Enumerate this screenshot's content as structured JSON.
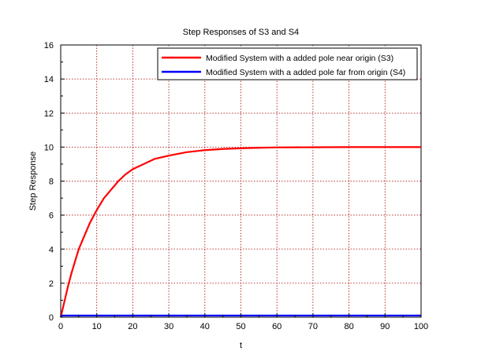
{
  "chart_data": {
    "type": "line",
    "title": "Step Responses of S3 and S4",
    "xlabel": "t",
    "ylabel": "Step Response",
    "xlim": [
      0,
      100
    ],
    "ylim": [
      0,
      16
    ],
    "xticks": [
      0,
      10,
      20,
      30,
      40,
      50,
      60,
      70,
      80,
      90,
      100
    ],
    "yticks": [
      0,
      2,
      4,
      6,
      8,
      10,
      12,
      14,
      16
    ],
    "grid": true,
    "legend_position": "top-right",
    "series": [
      {
        "name": "Modified System with a added pole near origin (S3)",
        "color": "#ff0000",
        "x": [
          0,
          1,
          2,
          3,
          4,
          5,
          6,
          7,
          8,
          10,
          12,
          14,
          16,
          18,
          20,
          23,
          26,
          30,
          35,
          40,
          45,
          50,
          55,
          60,
          70,
          80,
          90,
          100
        ],
        "y": [
          0,
          0.9,
          1.8,
          2.6,
          3.3,
          4.0,
          4.5,
          5.0,
          5.5,
          6.3,
          7.0,
          7.5,
          8.0,
          8.4,
          8.7,
          9.0,
          9.3,
          9.5,
          9.7,
          9.82,
          9.89,
          9.93,
          9.96,
          9.98,
          9.99,
          10.0,
          10.0,
          10.0
        ]
      },
      {
        "name": "Modified System with a added pole far from origin (S4)",
        "color": "#0000ff",
        "x": [
          0,
          0.3,
          0.6,
          1,
          2,
          100
        ],
        "y": [
          0,
          0.08,
          0.1,
          0.1,
          0.1,
          0.1
        ]
      }
    ]
  }
}
